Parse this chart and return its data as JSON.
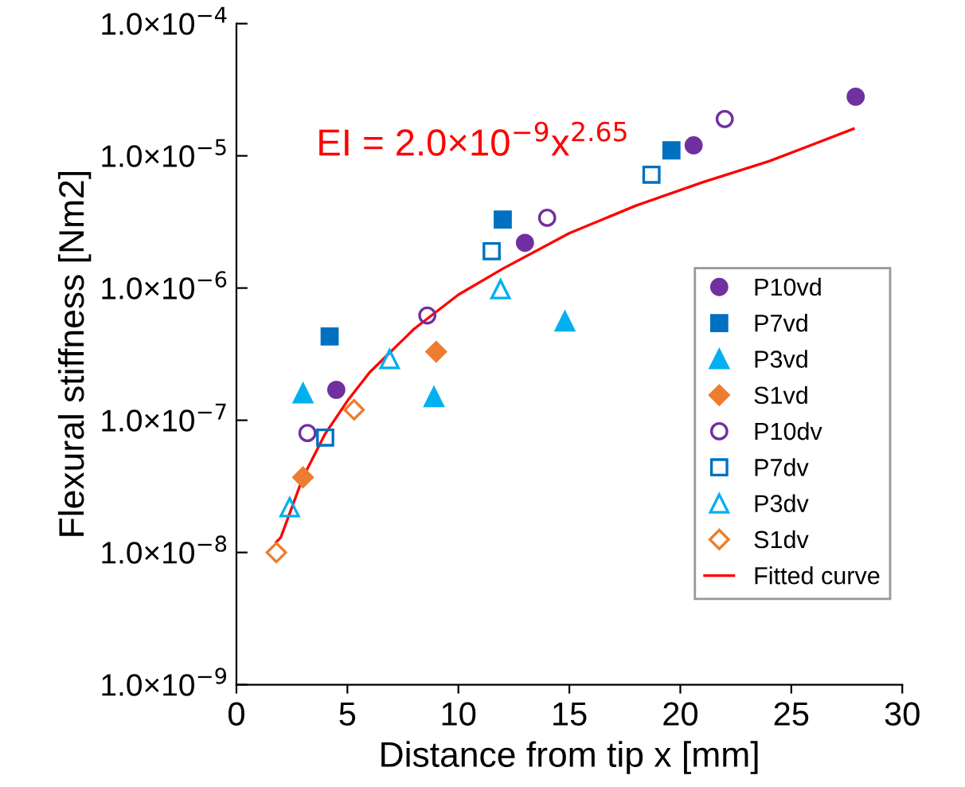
{
  "chart_data": {
    "type": "scatter",
    "xlabel": "Distance from tip x [mm]",
    "ylabel": "Flexural stiffness [Nm2]",
    "log": "y",
    "xlim": [
      0,
      30
    ],
    "xticks": [
      0,
      5,
      10,
      15,
      20,
      25,
      30
    ],
    "ylim": [
      1e-09,
      0.0001
    ],
    "yticks": [
      {
        "value": 1e-09,
        "label": "1.0×10$^{−9}$"
      },
      {
        "value": 1e-08,
        "label": "1.0×10$^{−8}$"
      },
      {
        "value": 1e-07,
        "label": "1.0×10$^{−7}$"
      },
      {
        "value": 1e-06,
        "label": "1.0×10$^{−6}$"
      },
      {
        "value": 1e-05,
        "label": "1.0×10$^{−5}$"
      },
      {
        "value": 0.0001,
        "label": "1.0×10$^{−4}$"
      }
    ],
    "grid": false,
    "legend": "right",
    "annotations": [
      "EI = 2.0×10$^{−9}$x$^{2.65}$"
    ],
    "series": [
      {
        "name": "P10vd",
        "color": "#7030a0",
        "marker": "circle",
        "x": [
          4.5,
          13.0,
          20.6,
          27.9
        ],
        "values": [
          1.7e-07,
          2.2e-06,
          1.2e-05,
          2.8e-05
        ]
      },
      {
        "name": "P7vd",
        "color": "#0070c0",
        "marker": "square",
        "x": [
          4.2,
          12.0,
          19.6
        ],
        "values": [
          4.3e-07,
          3.3e-06,
          1.1e-05
        ]
      },
      {
        "name": "P3vd",
        "color": "#00b0f0",
        "marker": "triangle",
        "x": [
          3.0,
          8.9,
          14.8
        ],
        "values": [
          1.6e-07,
          1.5e-07,
          5.6e-07
        ]
      },
      {
        "name": "S1vd",
        "color": "#ed7d31",
        "marker": "diamond",
        "x": [
          3.0,
          9.0
        ],
        "values": [
          3.7e-08,
          3.3e-07
        ]
      },
      {
        "name": "P10dv",
        "color": "#7030a0",
        "marker": "circle",
        "x": [
          3.2,
          8.6,
          14.0,
          22.0
        ],
        "values": [
          8e-08,
          6.2e-07,
          3.4e-06,
          1.9e-05
        ]
      },
      {
        "name": "P7dv",
        "color": "#0070c0",
        "marker": "square",
        "x": [
          4.0,
          11.5,
          18.7
        ],
        "values": [
          7.4e-08,
          1.9e-06,
          7.2e-06
        ]
      },
      {
        "name": "P3dv",
        "color": "#00b0f0",
        "marker": "triangle",
        "x": [
          2.4,
          6.9,
          11.9
        ],
        "values": [
          2.2e-08,
          2.9e-07,
          9.8e-07
        ]
      },
      {
        "name": "S1dv",
        "color": "#ed7d31",
        "marker": "diamond",
        "x": [
          1.8,
          5.3
        ],
        "values": [
          1e-08,
          1.2e-07
        ]
      },
      {
        "name": "Fitted curve",
        "type": "line",
        "color": "#ff0000",
        "marker": "none",
        "x": [
          1.8,
          2,
          3,
          4,
          5,
          6,
          8,
          10,
          12,
          15,
          18,
          21,
          24,
          27.8
        ],
        "values": [
          1.2e-08,
          1.3e-08,
          3.7e-08,
          7.9e-08,
          1.4e-07,
          2.3e-07,
          4.9e-07,
          8.9e-07,
          1.4e-06,
          2.6e-06,
          4.2e-06,
          6.3e-06,
          9.1e-06,
          1.6e-05
        ]
      }
    ]
  }
}
